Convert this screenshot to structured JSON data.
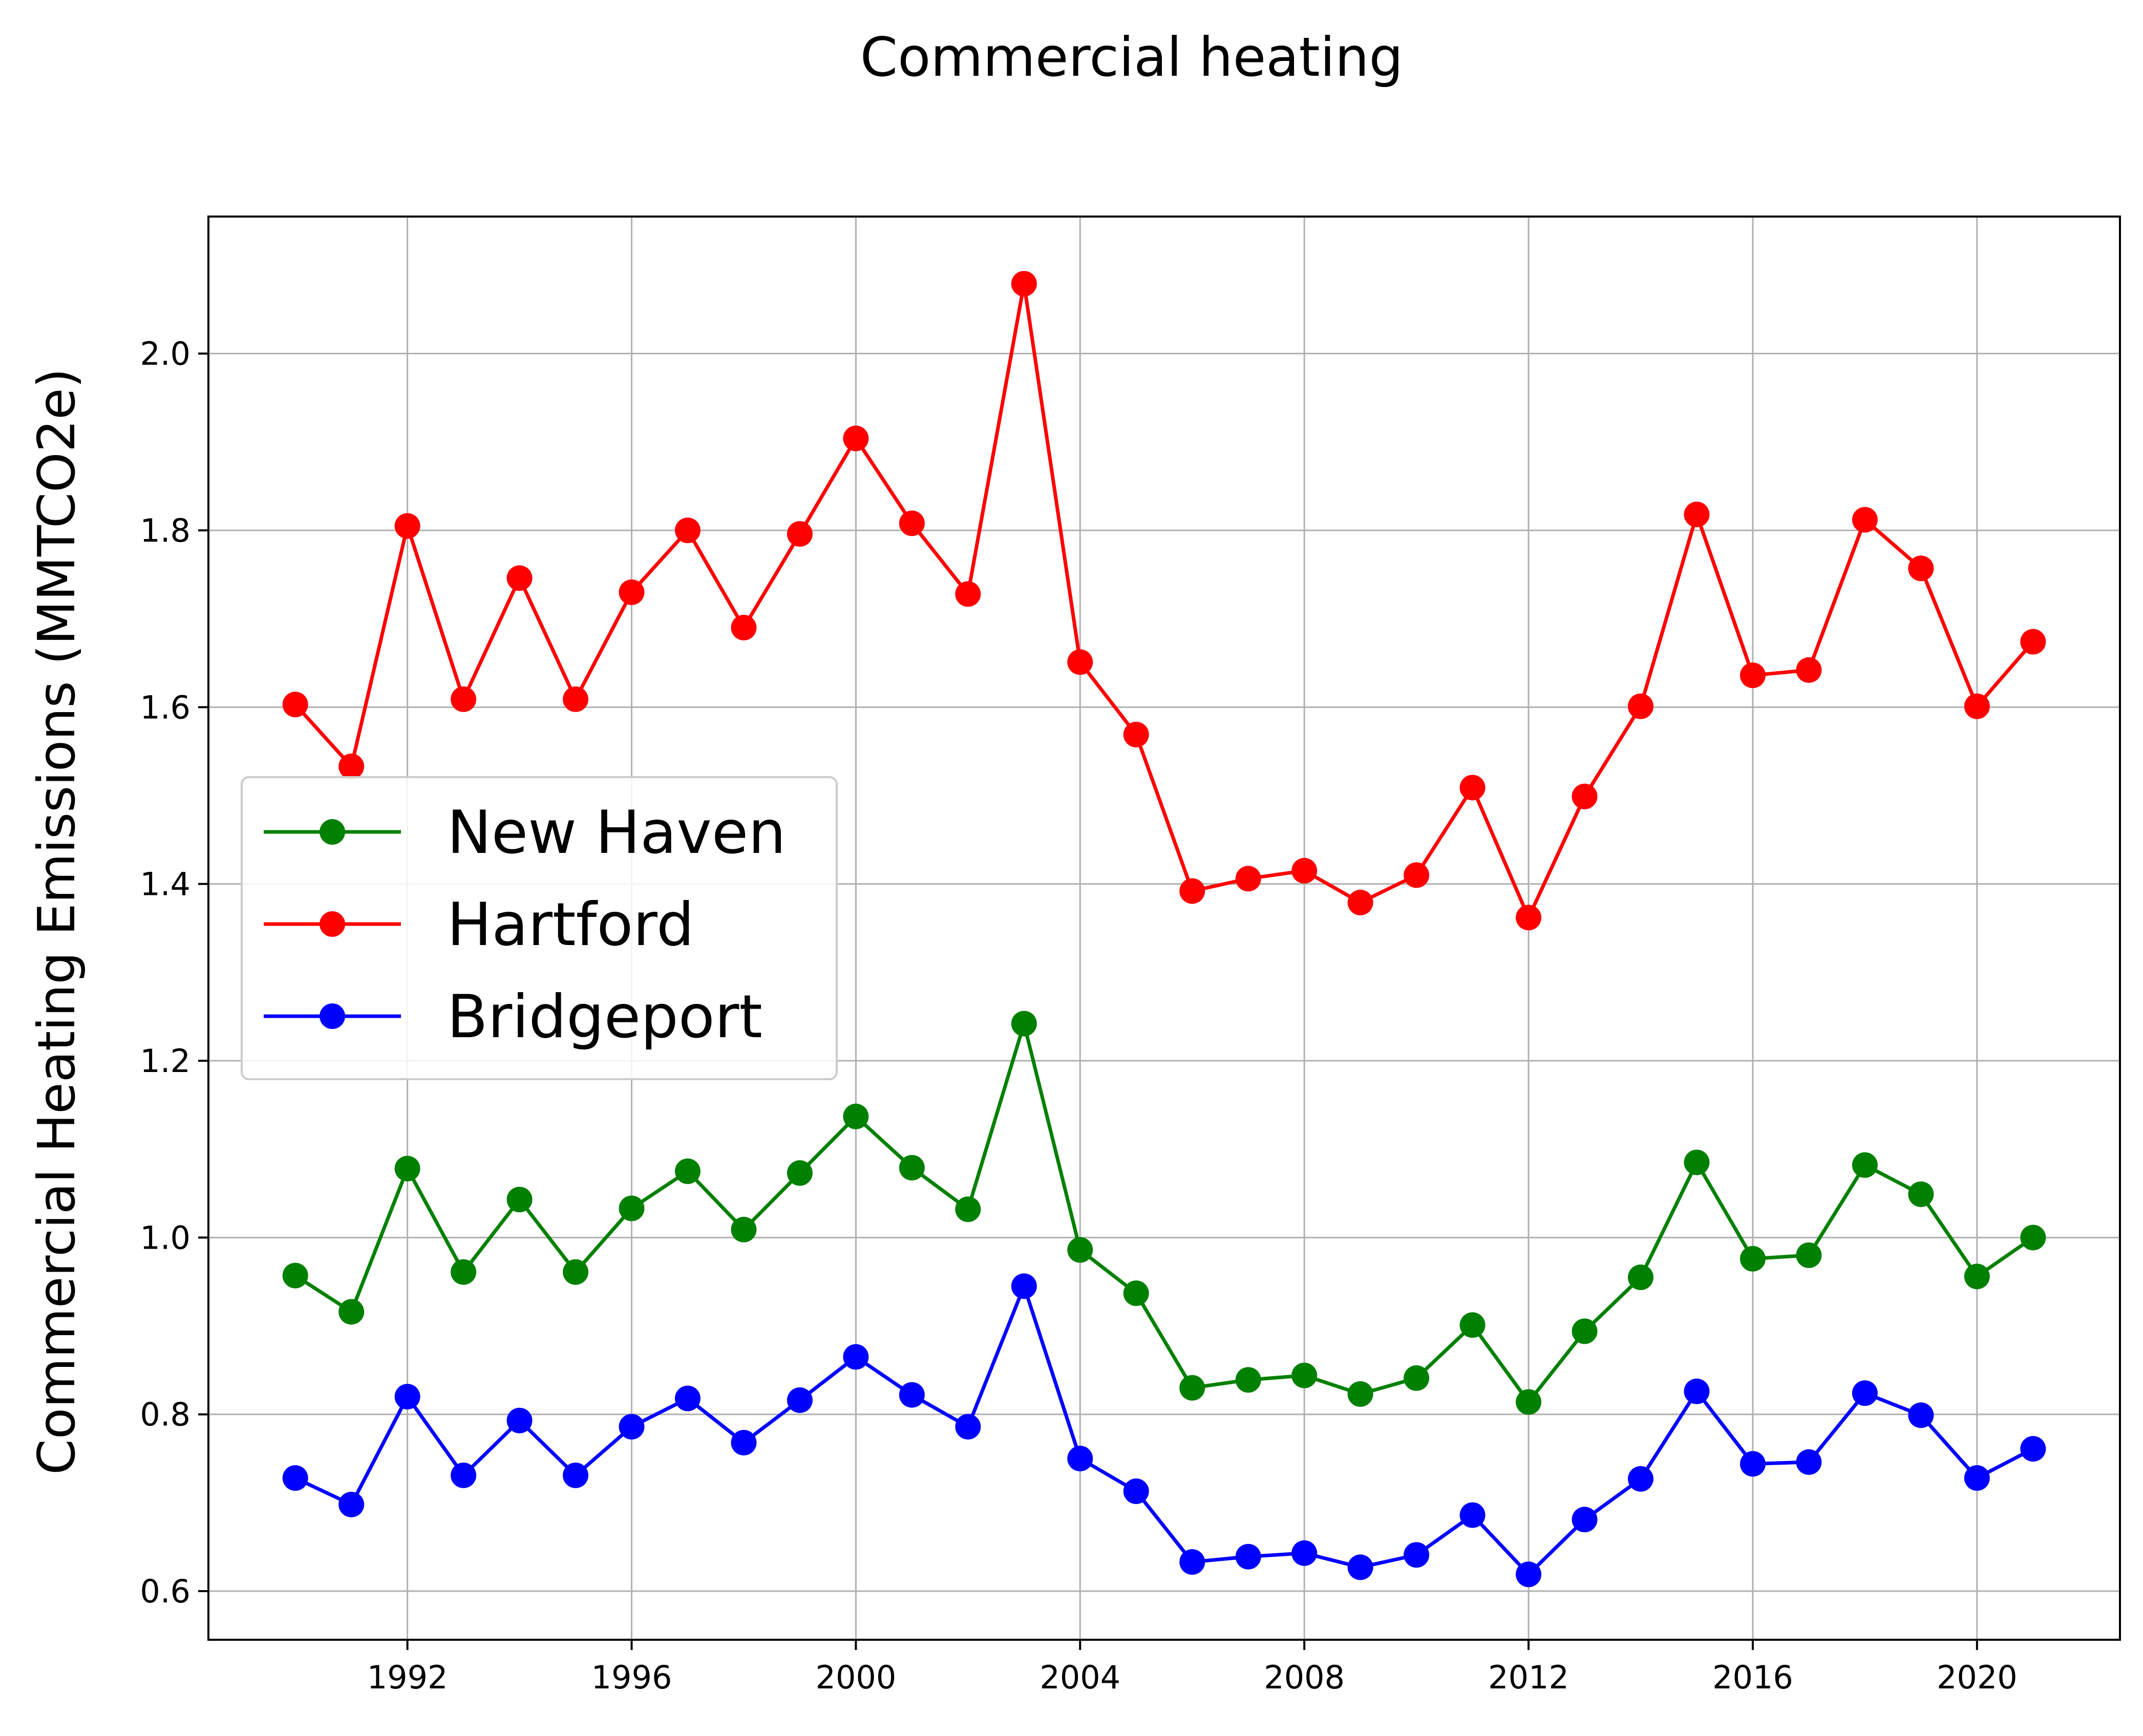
{
  "chart_data": {
    "type": "line",
    "title": "Commercial heating",
    "xlabel": "",
    "ylabel": "Commercial Heating Emissions (MMTCO2e)",
    "x": [
      1990,
      1991,
      1992,
      1993,
      1994,
      1995,
      1996,
      1997,
      1998,
      1999,
      2000,
      2001,
      2002,
      2003,
      2004,
      2005,
      2006,
      2007,
      2008,
      2009,
      2010,
      2011,
      2012,
      2013,
      2014,
      2015,
      2016,
      2017,
      2018,
      2019,
      2020,
      2021
    ],
    "xlim": [
      1988.45,
      2022.55
    ],
    "ylim": [
      0.545,
      2.155
    ],
    "xticks": [
      1992,
      1996,
      2000,
      2004,
      2008,
      2012,
      2016,
      2020
    ],
    "xtick_labels": [
      "1992",
      "1996",
      "2000",
      "2004",
      "2008",
      "2012",
      "2016",
      "2020"
    ],
    "yticks": [
      0.6,
      0.8,
      1.0,
      1.2,
      1.4,
      1.6,
      1.8,
      2.0
    ],
    "ytick_labels": [
      "0.6",
      "0.8",
      "1.0",
      "1.2",
      "1.4",
      "1.6",
      "1.8",
      "2.0"
    ],
    "grid": true,
    "legend_position": "center-left",
    "series": [
      {
        "name": "New Haven",
        "color": "#008000",
        "values": [
          0.957,
          0.916,
          1.078,
          0.961,
          1.043,
          0.961,
          1.033,
          1.075,
          1.009,
          1.073,
          1.137,
          1.079,
          1.032,
          1.242,
          0.986,
          0.937,
          0.83,
          0.839,
          0.844,
          0.823,
          0.841,
          0.901,
          0.814,
          0.894,
          0.955,
          1.085,
          0.976,
          0.98,
          1.082,
          1.049,
          0.956,
          1.0
        ]
      },
      {
        "name": "Hartford",
        "color": "#ff0000",
        "values": [
          1.603,
          1.533,
          1.805,
          1.609,
          1.746,
          1.609,
          1.73,
          1.8,
          1.69,
          1.796,
          1.904,
          1.808,
          1.728,
          2.079,
          1.651,
          1.569,
          1.392,
          1.406,
          1.415,
          1.379,
          1.41,
          1.509,
          1.362,
          1.499,
          1.601,
          1.818,
          1.636,
          1.642,
          1.812,
          1.757,
          1.601,
          1.674
        ]
      },
      {
        "name": "Bridgeport",
        "color": "#0000ff",
        "values": [
          0.728,
          0.698,
          0.82,
          0.731,
          0.793,
          0.731,
          0.786,
          0.818,
          0.768,
          0.816,
          0.865,
          0.822,
          0.786,
          0.945,
          0.75,
          0.713,
          0.633,
          0.639,
          0.643,
          0.627,
          0.641,
          0.686,
          0.619,
          0.681,
          0.727,
          0.826,
          0.744,
          0.746,
          0.824,
          0.799,
          0.728,
          0.761
        ]
      }
    ]
  }
}
